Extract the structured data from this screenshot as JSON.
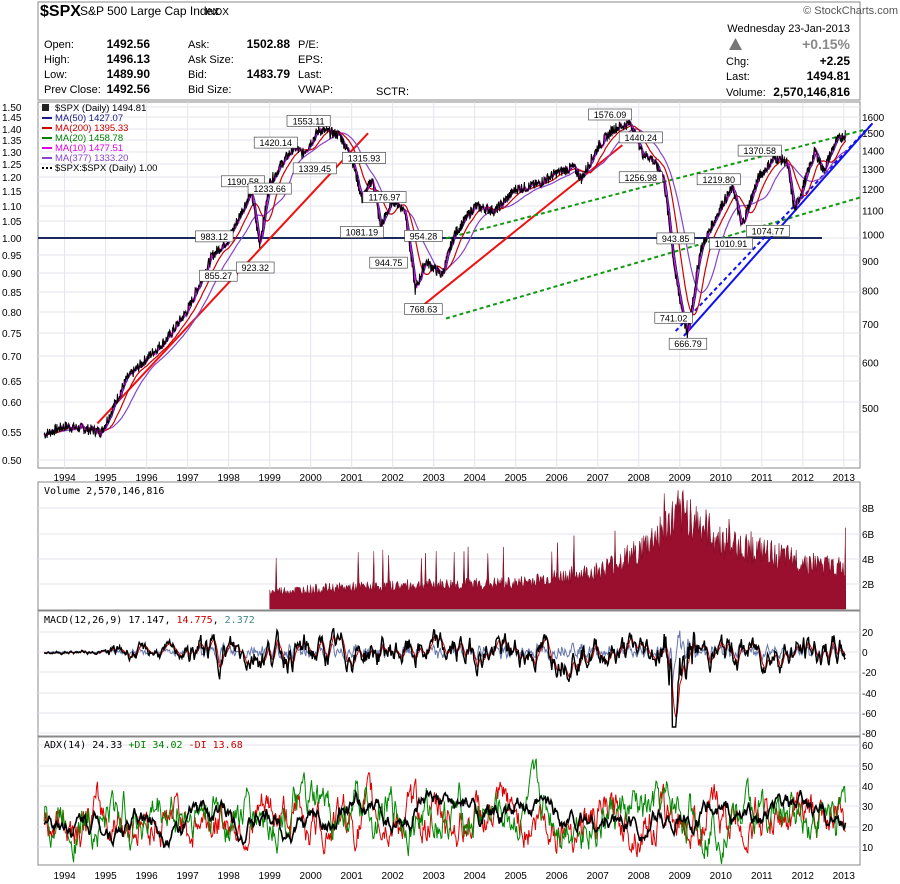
{
  "header": {
    "symbol": "$SPX",
    "name": "S&P 500 Large Cap Index",
    "exchange": "INDX",
    "credit": "© StockCharts.com",
    "date": "Wednesday  23-Jan-2013",
    "quote": [
      {
        "label": "Open:",
        "value": "1492.56"
      },
      {
        "label": "High:",
        "value": "1496.13"
      },
      {
        "label": "Low:",
        "value": "1489.90"
      },
      {
        "label": "Prev Close:",
        "value": "1492.56"
      }
    ],
    "quote2": [
      {
        "label": "Ask:",
        "value": "1502.88"
      },
      {
        "label": "Ask Size:",
        "value": ""
      },
      {
        "label": "Bid:",
        "value": "1483.79"
      },
      {
        "label": "Bid Size:",
        "value": ""
      }
    ],
    "quote3": [
      "P/E:",
      "EPS:",
      "Last:",
      "VWAP:"
    ],
    "sctr": "SCTR:",
    "pct_change": "+0.15%",
    "chg_label": "Chg:",
    "chg": "+2.25",
    "last_label": "Last:",
    "last": "1494.81",
    "volume_label": "Volume:",
    "volume": "2,570,146,816"
  },
  "legend": [
    {
      "text": "$SPX (Daily) 1494.81",
      "color": "#000000"
    },
    {
      "text": "MA(50) 1427.07",
      "color": "#1a1a80"
    },
    {
      "text": "MA(200) 1395.33",
      "color": "#cc0000"
    },
    {
      "text": "MA(20) 1458.78",
      "color": "#008000"
    },
    {
      "text": "MA(10) 1477.51",
      "color": "#e000e0"
    },
    {
      "text": "MA(377) 1333.20",
      "color": "#8844cc"
    },
    {
      "text": "$SPX:$SPX (Daily) 1.00",
      "color": "#000000"
    }
  ],
  "volume_title": "Volume 2,570,146,816",
  "macd_title": {
    "label": "MACD(12,26,9)",
    "macd": "17.147",
    "signal": "14.775",
    "hist": "2.372"
  },
  "adx_title": {
    "label": "ADX(14)",
    "adx": "24.33",
    "pdi": "+DI 34.02",
    "mdi": "-DI 13.68"
  },
  "chart_data": {
    "type": "line",
    "title": "$SPX S&P 500 Large Cap Index INDX",
    "x_ticks": [
      "1994",
      "1995",
      "1996",
      "1997",
      "1998",
      "1999",
      "2000",
      "2001",
      "2002",
      "2003",
      "2004",
      "2005",
      "2006",
      "2007",
      "2008",
      "2009",
      "2010",
      "2011",
      "2012",
      "2013"
    ],
    "y_left_ticks": [
      "1.50",
      "1.45",
      "1.40",
      "1.35",
      "1.30",
      "1.25",
      "1.20",
      "1.15",
      "1.10",
      "1.05",
      "1.00",
      "0.95",
      "0.90",
      "0.85",
      "0.80",
      "0.75",
      "0.70",
      "0.65",
      "0.60",
      "0.55",
      "0.50"
    ],
    "y_right_ticks": [
      "1600",
      "1500",
      "1400",
      "1300",
      "1200",
      "1100",
      "1000",
      "900",
      "800",
      "700",
      "600",
      "500"
    ],
    "y_scale": "log",
    "series": [
      {
        "name": "$SPX (Daily)",
        "x": [
          1993.5,
          1994.0,
          1994.5,
          1994.9,
          1995.5,
          1996.0,
          1996.5,
          1997.0,
          1997.6,
          1998.0,
          1998.55,
          1998.75,
          1999.0,
          1999.3,
          1999.6,
          1999.8,
          2000.2,
          2000.7,
          2001.0,
          2001.25,
          2001.5,
          2001.7,
          2002.0,
          2002.3,
          2002.55,
          2002.8,
          2003.2,
          2003.5,
          2004.0,
          2004.5,
          2005.0,
          2005.5,
          2006.0,
          2006.4,
          2006.6,
          2007.0,
          2007.4,
          2007.8,
          2008.1,
          2008.3,
          2008.6,
          2008.9,
          2009.18,
          2009.5,
          2010.0,
          2010.3,
          2010.5,
          2010.9,
          2011.3,
          2011.6,
          2011.8,
          2012.3,
          2012.5,
          2012.8,
          2013.05
        ],
        "values": [
          450,
          465,
          460,
          455,
          560,
          610,
          660,
          740,
          920,
          983,
          1190,
          960,
          1230,
          1330,
          1420,
          1380,
          1520,
          1490,
          1360,
          1150,
          1250,
          1030,
          1150,
          1100,
          800,
          900,
          850,
          1000,
          1120,
          1100,
          1200,
          1220,
          1280,
          1310,
          1250,
          1420,
          1530,
          1560,
          1380,
          1360,
          1260,
          840,
          667,
          940,
          1120,
          1210,
          1030,
          1250,
          1360,
          1340,
          1100,
          1400,
          1290,
          1450,
          1495
        ]
      }
    ],
    "annotations": [
      "1553.11",
      "1420.14",
      "1339.45",
      "1315.93",
      "1176.97",
      "1190.58",
      "1233.66",
      "983.12",
      "855.27",
      "923.32",
      "1081.19",
      "944.75",
      "954.28",
      "768.63",
      "1576.09",
      "1440.24",
      "1256.98",
      "943.85",
      "741.02",
      "666.79",
      "1370.58",
      "1219.80",
      "1010.91",
      "1074.77"
    ],
    "volume": {
      "ticks": [
        "8B",
        "6B",
        "4B",
        "2B"
      ],
      "x": [
        1999.0,
        2001.0,
        2003.0,
        2005.0,
        2007.0,
        2008.0,
        2008.8,
        2009.2,
        2010.0,
        2011.0,
        2012.0,
        2013.0
      ],
      "values": [
        1.3,
        1.6,
        1.8,
        1.9,
        2.8,
        4.2,
        6.5,
        7.0,
        5.0,
        4.2,
        3.5,
        3.0
      ]
    },
    "macd": {
      "ticks": [
        "20",
        "0",
        "-20",
        "-40",
        "-60",
        "-80"
      ],
      "ylim": [
        -80,
        30
      ]
    },
    "adx": {
      "ticks": [
        "60",
        "50",
        "40",
        "30",
        "20",
        "10"
      ],
      "ylim": [
        0,
        60
      ]
    }
  }
}
